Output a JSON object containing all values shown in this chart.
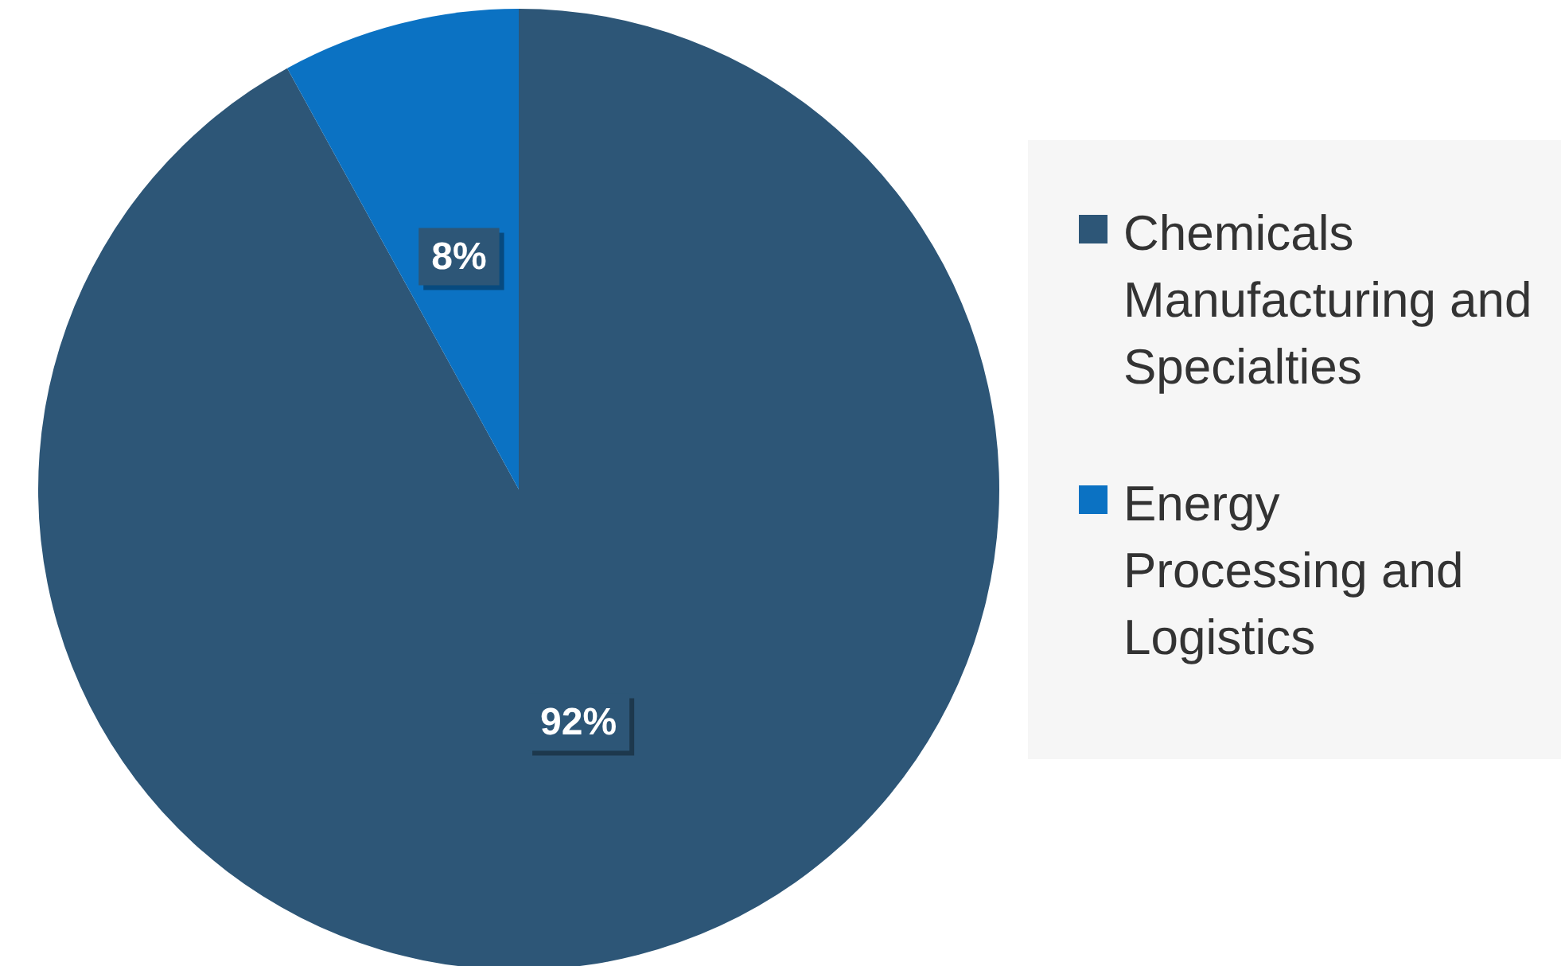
{
  "chart_data": {
    "type": "pie",
    "categories": [
      "Chemicals Manufacturing and Specialties",
      "Energy Processing and Logistics"
    ],
    "values": [
      92,
      8
    ],
    "colors": [
      "#2d5677",
      "#0b72c3"
    ],
    "value_labels": [
      "92%",
      "8%"
    ],
    "legend": "right"
  }
}
